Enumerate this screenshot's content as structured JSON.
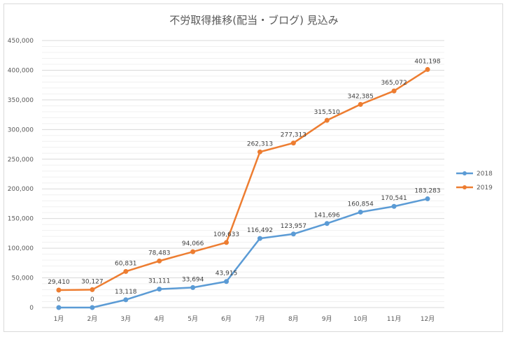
{
  "chart_data": {
    "type": "line",
    "title": "不労取得推移(配当・ブログ) 見込み",
    "xlabel": "",
    "ylabel": "",
    "categories": [
      "1月",
      "2月",
      "3月",
      "4月",
      "5月",
      "6月",
      "7月",
      "8月",
      "9月",
      "10月",
      "11月",
      "12月"
    ],
    "ylim": [
      0,
      450000
    ],
    "yticks": [
      0,
      50000,
      100000,
      150000,
      200000,
      250000,
      300000,
      350000,
      400000,
      450000
    ],
    "ytick_labels": [
      "0",
      "50,000",
      "100,000",
      "150,000",
      "200,000",
      "250,000",
      "300,000",
      "350,000",
      "400,000",
      "450,000"
    ],
    "grid": true,
    "legend": "right",
    "series": [
      {
        "name": "2018",
        "color": "#5b9bd5",
        "values": [
          0,
          0,
          13118,
          31111,
          33694,
          43915,
          116492,
          123957,
          141696,
          160854,
          170541,
          183283
        ],
        "labels": [
          "0",
          "0",
          "13,118",
          "31,111",
          "33,694",
          "43,915",
          "116,492",
          "123,957",
          "141,696",
          "160,854",
          "170,541",
          "183,283"
        ]
      },
      {
        "name": "2019",
        "color": "#ed7d31",
        "values": [
          29410,
          30127,
          60831,
          78483,
          94066,
          109633,
          262313,
          277313,
          315510,
          342385,
          365072,
          401198
        ],
        "labels": [
          "29,410",
          "30,127",
          "60,831",
          "78,483",
          "94,066",
          "109,633",
          "262,313",
          "277,313",
          "315,510",
          "342,385",
          "365,072",
          "401,198"
        ]
      }
    ]
  }
}
